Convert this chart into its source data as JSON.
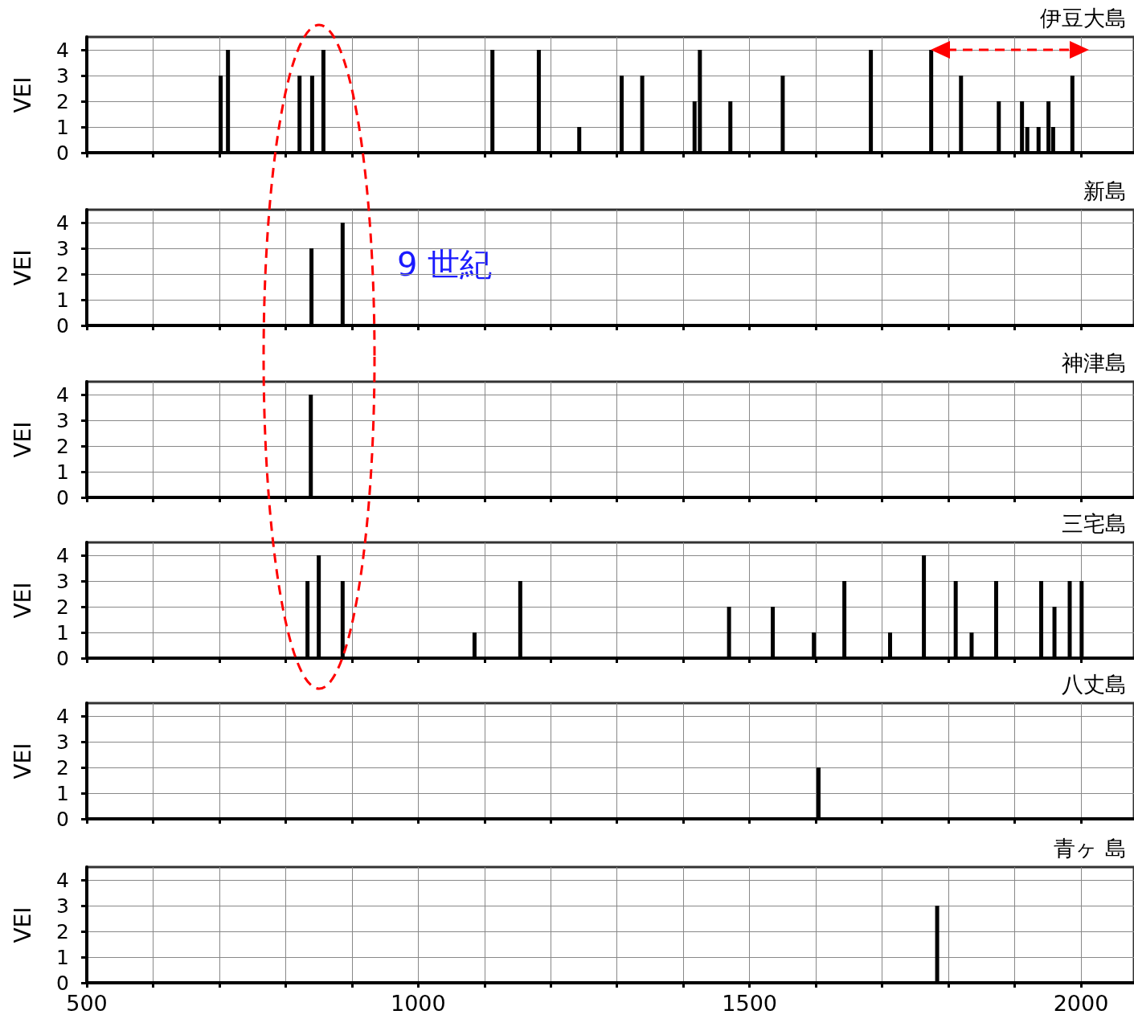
{
  "chart_data": [
    {
      "type": "bar",
      "title": "伊豆大島",
      "ylabel": "VEI",
      "color": "#000000",
      "x": [
        702,
        713,
        821,
        840,
        857,
        1112,
        1182,
        1243,
        1307,
        1338,
        1417,
        1425,
        1471,
        1550,
        1683,
        1774,
        1819,
        1876,
        1911,
        1919,
        1936,
        1951,
        1958,
        1987
      ],
      "values": [
        3,
        4,
        3,
        3,
        4,
        4,
        4,
        1,
        3,
        3,
        2,
        4,
        2,
        3,
        4,
        4,
        3,
        2,
        2,
        1,
        1,
        2,
        1,
        3
      ],
      "xlim": [
        500,
        2080
      ],
      "xticks": [
        500,
        {
          "value": 600,
          "label": null
        },
        {
          "value": 700,
          "label": null
        },
        {
          "value": 800,
          "label": null
        },
        {
          "value": 900,
          "label": null
        },
        1000,
        {
          "value": 1100,
          "label": null
        },
        {
          "value": 1200,
          "label": null
        },
        {
          "value": 1300,
          "label": null
        },
        {
          "value": 1400,
          "label": null
        },
        1500,
        {
          "value": 1600,
          "label": null
        },
        {
          "value": 1700,
          "label": null
        },
        {
          "value": 1800,
          "label": null
        },
        {
          "value": 1900,
          "label": null
        },
        2000
      ],
      "ylim": [
        0,
        4.5
      ],
      "yticks": [
        0,
        1,
        2,
        3,
        4
      ],
      "grid": true,
      "tick_labels": "y"
    },
    {
      "type": "bar",
      "title": "新島",
      "ylabel": "VEI",
      "color": "#000000",
      "x": [
        839,
        886
      ],
      "values": [
        3,
        4
      ],
      "xlim": [
        500,
        2080
      ],
      "xticks": [
        500,
        {
          "value": 600,
          "label": null
        },
        {
          "value": 700,
          "label": null
        },
        {
          "value": 800,
          "label": null
        },
        {
          "value": 900,
          "label": null
        },
        1000,
        {
          "value": 1100,
          "label": null
        },
        {
          "value": 1200,
          "label": null
        },
        {
          "value": 1300,
          "label": null
        },
        {
          "value": 1400,
          "label": null
        },
        1500,
        {
          "value": 1600,
          "label": null
        },
        {
          "value": 1700,
          "label": null
        },
        {
          "value": 1800,
          "label": null
        },
        {
          "value": 1900,
          "label": null
        },
        2000
      ],
      "ylim": [
        0,
        4.5
      ],
      "yticks": [
        0,
        1,
        2,
        3,
        4
      ],
      "grid": true,
      "tick_labels": "y",
      "annotations": [
        "9 世紀"
      ]
    },
    {
      "type": "bar",
      "title": "神津島",
      "ylabel": "VEI",
      "color": "#000000",
      "x": [
        838
      ],
      "values": [
        4
      ],
      "xlim": [
        500,
        2080
      ],
      "xticks": [
        500,
        {
          "value": 600,
          "label": null
        },
        {
          "value": 700,
          "label": null
        },
        {
          "value": 800,
          "label": null
        },
        {
          "value": 900,
          "label": null
        },
        1000,
        {
          "value": 1100,
          "label": null
        },
        {
          "value": 1200,
          "label": null
        },
        {
          "value": 1300,
          "label": null
        },
        {
          "value": 1400,
          "label": null
        },
        1500,
        {
          "value": 1600,
          "label": null
        },
        {
          "value": 1700,
          "label": null
        },
        {
          "value": 1800,
          "label": null
        },
        {
          "value": 1900,
          "label": null
        },
        2000
      ],
      "ylim": [
        0,
        4.5
      ],
      "yticks": [
        0,
        1,
        2,
        3,
        4
      ],
      "grid": true,
      "tick_labels": "y"
    },
    {
      "type": "bar",
      "title": "三宅島",
      "ylabel": "VEI",
      "color": "#000000",
      "x": [
        833,
        850,
        886,
        1085,
        1154,
        1469,
        1535,
        1597,
        1643,
        1712,
        1763,
        1811,
        1835,
        1872,
        1940,
        1960,
        1983,
        2001
      ],
      "values": [
        3,
        4,
        3,
        1,
        3,
        2,
        2,
        1,
        3,
        1,
        4,
        3,
        1,
        3,
        3,
        2,
        3,
        3
      ],
      "xlim": [
        500,
        2080
      ],
      "xticks": [
        500,
        {
          "value": 600,
          "label": null
        },
        {
          "value": 700,
          "label": null
        },
        {
          "value": 800,
          "label": null
        },
        {
          "value": 900,
          "label": null
        },
        1000,
        {
          "value": 1100,
          "label": null
        },
        {
          "value": 1200,
          "label": null
        },
        {
          "value": 1300,
          "label": null
        },
        {
          "value": 1400,
          "label": null
        },
        1500,
        {
          "value": 1600,
          "label": null
        },
        {
          "value": 1700,
          "label": null
        },
        {
          "value": 1800,
          "label": null
        },
        {
          "value": 1900,
          "label": null
        },
        2000
      ],
      "ylim": [
        0,
        4.5
      ],
      "yticks": [
        0,
        1,
        2,
        3,
        4
      ],
      "grid": true,
      "tick_labels": "y"
    },
    {
      "type": "bar",
      "title": "八丈島",
      "ylabel": "VEI",
      "color": "#000000",
      "x": [
        1604
      ],
      "values": [
        2
      ],
      "xlim": [
        500,
        2080
      ],
      "xticks": [
        500,
        {
          "value": 600,
          "label": null
        },
        {
          "value": 700,
          "label": null
        },
        {
          "value": 800,
          "label": null
        },
        {
          "value": 900,
          "label": null
        },
        1000,
        {
          "value": 1100,
          "label": null
        },
        {
          "value": 1200,
          "label": null
        },
        {
          "value": 1300,
          "label": null
        },
        {
          "value": 1400,
          "label": null
        },
        1500,
        {
          "value": 1600,
          "label": null
        },
        {
          "value": 1700,
          "label": null
        },
        {
          "value": 1800,
          "label": null
        },
        {
          "value": 1900,
          "label": null
        },
        2000
      ],
      "ylim": [
        0,
        4.5
      ],
      "yticks": [
        0,
        1,
        2,
        3,
        4
      ],
      "grid": true,
      "tick_labels": "y"
    },
    {
      "type": "bar",
      "title": "青ヶ 島",
      "ylabel": "VEI",
      "color": "#000000",
      "x": [
        1783
      ],
      "values": [
        3
      ],
      "xlim": [
        500,
        2080
      ],
      "xticks": [
        500,
        {
          "value": 600,
          "label": null
        },
        {
          "value": 700,
          "label": null
        },
        {
          "value": 800,
          "label": null
        },
        {
          "value": 900,
          "label": null
        },
        1000,
        {
          "value": 1100,
          "label": null
        },
        {
          "value": 1200,
          "label": null
        },
        {
          "value": 1300,
          "label": null
        },
        {
          "value": 1400,
          "label": null
        },
        1500,
        {
          "value": 1600,
          "label": null
        },
        {
          "value": 1700,
          "label": null
        },
        {
          "value": 1800,
          "label": null
        },
        {
          "value": 1900,
          "label": null
        },
        2000
      ],
      "ylim": [
        0,
        4.5
      ],
      "yticks": [
        0,
        1,
        2,
        3,
        4
      ],
      "grid": true
    }
  ]
}
